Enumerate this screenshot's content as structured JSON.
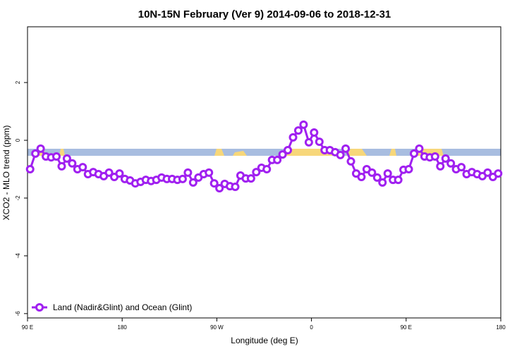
{
  "chart_data": {
    "type": "line",
    "title": "10N-15N February (Ver 9)   2014-09-06 to 2018-12-31",
    "x_label": "Longitude (deg E)",
    "y_label": "XCO2 - MLO trend (ppm)",
    "x": [
      92.5,
      97.5,
      102.5,
      107.5,
      112.5,
      117.5,
      122.5,
      127.5,
      132.5,
      137.5,
      142.5,
      147.5,
      152.5,
      157.5,
      162.5,
      167.5,
      172.5,
      177.5,
      182.5,
      187.5,
      192.5,
      197.5,
      202.5,
      207.5,
      212.5,
      217.5,
      222.5,
      227.5,
      232.5,
      237.5,
      242.5,
      247.5,
      252.5,
      257.5,
      262.5,
      267.5,
      272.5,
      277.5,
      282.5,
      287.5,
      292.5,
      297.5,
      302.5,
      307.5,
      312.5,
      317.5,
      322.5,
      327.5,
      332.5,
      337.5,
      342.5,
      347.5,
      352.5,
      357.5,
      362.5,
      367.5,
      372.5,
      377.5,
      382.5,
      387.5,
      392.5,
      397.5,
      402.5,
      407.5,
      412.5,
      417.5,
      422.5,
      427.5,
      432.5,
      437.5,
      442.5,
      447.5,
      452.5,
      457.5,
      462.5,
      467.5,
      472.5,
      477.5,
      482.5,
      487.5,
      492.5,
      497.5,
      502.5,
      507.5,
      512.5,
      517.5,
      522.5,
      527.5,
      532.5,
      537.5
    ],
    "series": [
      {
        "name": "Land (Nadir&Glint) and Ocean (Glint)",
        "color": "#a020f0",
        "values": [
          -1.0,
          -0.46,
          -0.29,
          -0.56,
          -0.59,
          -0.56,
          -0.9,
          -0.63,
          -0.8,
          -1.0,
          -0.93,
          -1.17,
          -1.1,
          -1.17,
          -1.24,
          -1.12,
          -1.27,
          -1.15,
          -1.34,
          -1.39,
          -1.49,
          -1.44,
          -1.37,
          -1.41,
          -1.37,
          -1.29,
          -1.34,
          -1.34,
          -1.37,
          -1.34,
          -1.12,
          -1.46,
          -1.29,
          -1.17,
          -1.12,
          -1.49,
          -1.66,
          -1.51,
          -1.59,
          -1.61,
          -1.22,
          -1.32,
          -1.32,
          -1.1,
          -0.95,
          -1.0,
          -0.68,
          -0.68,
          -0.49,
          -0.34,
          0.1,
          0.34,
          0.54,
          -0.07,
          0.27,
          -0.05,
          -0.34,
          -0.34,
          -0.41,
          -0.51,
          -0.29,
          -0.73,
          -1.15,
          -1.27,
          -1.0,
          -1.12,
          -1.29,
          -1.46,
          -1.15,
          -1.37,
          -1.37,
          -1.02,
          -1.0,
          -0.46,
          -0.29,
          -0.56,
          -0.59,
          -0.56,
          -0.9,
          -0.63,
          -0.8,
          -1.0,
          -0.93,
          -1.17,
          -1.1,
          -1.17,
          -1.24,
          -1.12,
          -1.27,
          -1.15
        ]
      }
    ],
    "xlim": [
      90,
      540
    ],
    "xticks": [
      {
        "value": 90,
        "label": "90 E"
      },
      {
        "value": 180,
        "label": "180"
      },
      {
        "value": 270,
        "label": "90 W"
      },
      {
        "value": 360,
        "label": "0"
      },
      {
        "value": 450,
        "label": "90 E"
      },
      {
        "value": 540,
        "label": "180"
      }
    ],
    "ylim": [
      -6.15,
      3.93
    ],
    "yticks": [
      -6,
      -4,
      -2,
      0,
      2
    ],
    "legend": "bottomleft"
  }
}
